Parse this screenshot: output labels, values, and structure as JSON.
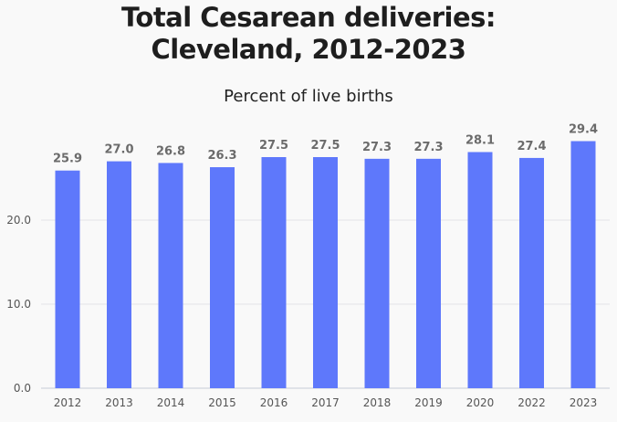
{
  "title_line1": "Total Cesarean deliveries:",
  "title_line2": "Cleveland, 2012-2023",
  "chart_data": {
    "type": "bar",
    "title": "Total Cesarean deliveries: Cleveland, 2012-2023",
    "subtitle": "Percent of live births",
    "categories": [
      "2012",
      "2013",
      "2014",
      "2015",
      "2016",
      "2017",
      "2018",
      "2019",
      "2020",
      "2022",
      "2023"
    ],
    "values": [
      25.9,
      27.0,
      26.8,
      26.3,
      27.5,
      27.5,
      27.3,
      27.3,
      28.1,
      27.4,
      29.4
    ],
    "data_labels": [
      "25.9",
      "27.0",
      "26.8",
      "26.3",
      "27.5",
      "27.5",
      "27.3",
      "27.3",
      "28.1",
      "27.4",
      "29.4"
    ],
    "yticks": [
      "0.0",
      "10.0",
      "20.0"
    ],
    "ytick_values": [
      0,
      10,
      20
    ],
    "ylim": [
      0,
      30
    ],
    "grid": true,
    "bar_color": "#5e78fb",
    "label_color": "#6b6b6b"
  }
}
